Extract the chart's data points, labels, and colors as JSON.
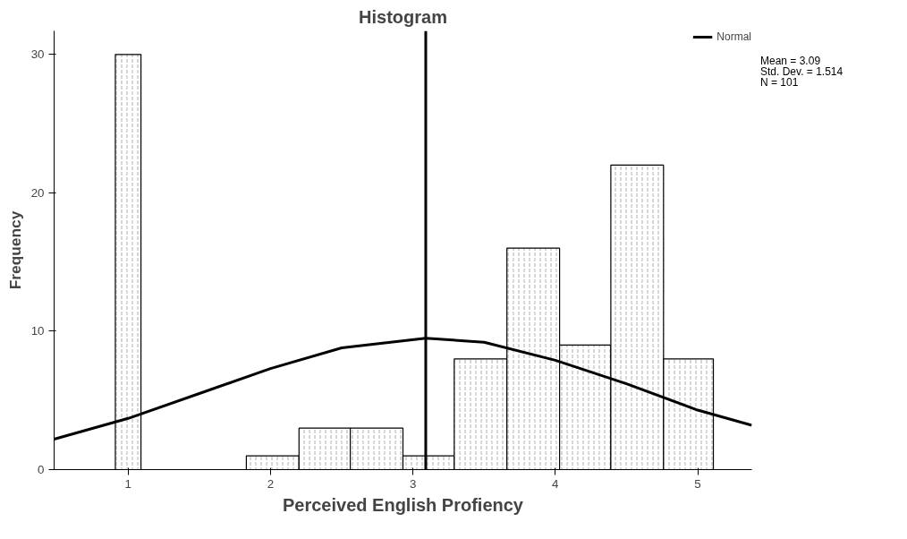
{
  "chart_data": {
    "type": "histogram",
    "title": "Histogram",
    "xlabel": "Perceived English Profiency",
    "ylabel": "Frequency",
    "bins": [
      0.91,
      1.09,
      1.83,
      2.2,
      2.56,
      2.93,
      3.29,
      3.66,
      4.03,
      4.39,
      4.76,
      5.11
    ],
    "values": [
      30,
      0,
      1,
      3,
      3,
      1,
      8,
      16,
      9,
      22,
      8
    ],
    "color": "#ffffff",
    "series": [
      {
        "name": "Normal",
        "type": "line",
        "color": "#000000",
        "x": [
          0.48,
          1.0,
          1.5,
          2.0,
          2.5,
          3.09,
          3.5,
          4.0,
          4.5,
          5.0,
          5.38
        ],
        "values": [
          2.2,
          3.7,
          5.5,
          7.3,
          8.8,
          9.5,
          9.2,
          7.9,
          6.2,
          4.3,
          3.2
        ]
      }
    ],
    "ref_lines": [
      {
        "axis": "x",
        "value": 3.09,
        "color": "#000000"
      }
    ],
    "annotations": [
      "Mean = 3.09",
      "Std. Dev. = 1.514",
      "N = 101"
    ],
    "xlim": [
      0.48,
      5.38
    ],
    "ylim": [
      0,
      31.7
    ],
    "xticks": [
      1,
      2,
      3,
      4,
      5
    ],
    "yticks": [
      0,
      10,
      20,
      30
    ],
    "grid": false,
    "legend": "top right"
  }
}
